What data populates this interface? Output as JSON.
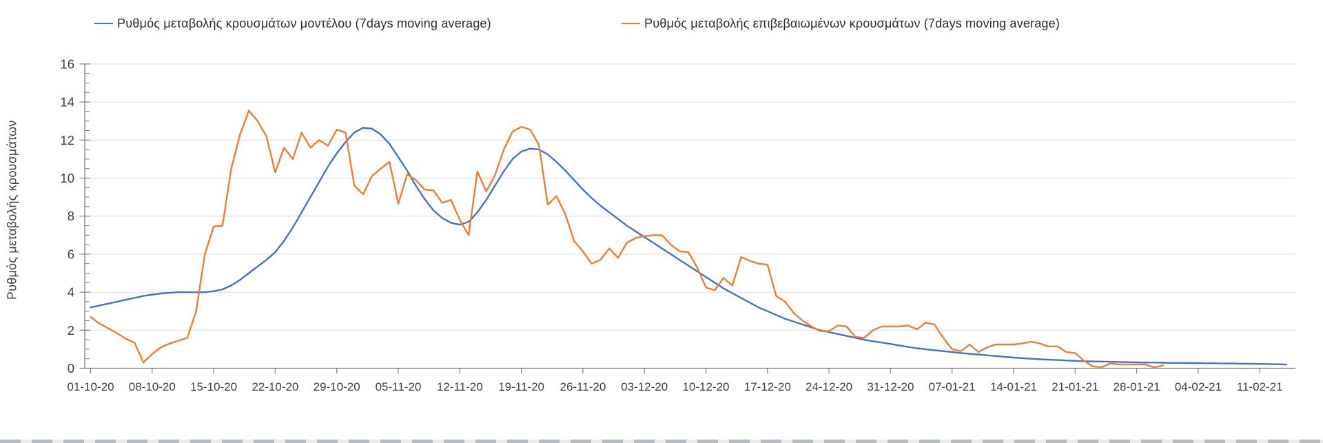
{
  "page": {
    "background": "#ffffff"
  },
  "chart_data": {
    "type": "line",
    "title": "",
    "xlabel": "",
    "ylabel": "Ρυθμός μεταβολής κρουσμάτων",
    "ylim": [
      0,
      16
    ],
    "y_tick_labels": [
      "0",
      "2",
      "4",
      "6",
      "8",
      "10",
      "12",
      "14",
      "16"
    ],
    "y_tick_step": 2,
    "y_minor_tick_step": 0.5,
    "grid": "horizontal-major",
    "legend_position": "top",
    "x_start_date": "01-10-20",
    "x_frequency": "daily",
    "x_tick_every_days": 7,
    "x_tick_labels": [
      "01-10-20",
      "08-10-20",
      "15-10-20",
      "22-10-20",
      "29-10-20",
      "05-11-20",
      "12-11-20",
      "19-11-20",
      "26-11-20",
      "03-12-20",
      "10-12-20",
      "17-12-20",
      "24-12-20",
      "31-12-20",
      "07-01-21",
      "14-01-21",
      "21-01-21",
      "28-01-21",
      "04-02-21",
      "11-02-21"
    ],
    "colors": {
      "axis": "#7f7f7f",
      "grid": "#dcdcdc",
      "label": "#3f3f3f"
    },
    "series": [
      {
        "name": "Ρυθμός μεταβολής κρουσμάτων μοντέλου (7days moving average)",
        "color": "#4472c4",
        "values": [
          3.2,
          3.3,
          3.4,
          3.5,
          3.6,
          3.7,
          3.8,
          3.87,
          3.93,
          3.97,
          4,
          4,
          4,
          4,
          4.05,
          4.15,
          4.35,
          4.65,
          5,
          5.35,
          5.7,
          6.1,
          6.7,
          7.4,
          8.2,
          9,
          9.8,
          10.6,
          11.3,
          11.9,
          12.4,
          12.65,
          12.6,
          12.3,
          11.8,
          11.1,
          10.4,
          9.6,
          8.9,
          8.3,
          7.9,
          7.65,
          7.55,
          7.7,
          8.2,
          8.85,
          9.6,
          10.35,
          11,
          11.4,
          11.55,
          11.5,
          11.25,
          10.85,
          10.4,
          9.9,
          9.4,
          8.95,
          8.55,
          8.2,
          7.85,
          7.5,
          7.2,
          6.9,
          6.6,
          6.3,
          6,
          5.7,
          5.4,
          5.1,
          4.8,
          4.5,
          4.2,
          3.95,
          3.7,
          3.45,
          3.2,
          3,
          2.8,
          2.6,
          2.45,
          2.3,
          2.15,
          2,
          1.9,
          1.8,
          1.7,
          1.6,
          1.5,
          1.42,
          1.35,
          1.28,
          1.2,
          1.12,
          1.05,
          1,
          0.95,
          0.9,
          0.85,
          0.8,
          0.76,
          0.72,
          0.68,
          0.64,
          0.6,
          0.56,
          0.53,
          0.5,
          0.47,
          0.45,
          0.43,
          0.41,
          0.39,
          0.37,
          0.36,
          0.35,
          0.34,
          0.33,
          0.32,
          0.31,
          0.3,
          0.3,
          0.29,
          0.28,
          0.28,
          0.27,
          0.27,
          0.26,
          0.26,
          0.25,
          0.25,
          0.24,
          0.24,
          0.23,
          0.22,
          0.21,
          0.2
        ]
      },
      {
        "name": "Ρυθμός μεταβολής επιβεβαιωμένων κρουσμάτων (7days moving average)",
        "color": "#ed7d31",
        "values": [
          2.7,
          2.35,
          2.1,
          1.85,
          1.55,
          1.35,
          0.3,
          0.75,
          1.1,
          1.3,
          1.45,
          1.6,
          3,
          6,
          7.45,
          7.5,
          10.5,
          12.3,
          13.55,
          13,
          12.2,
          10.3,
          11.6,
          11,
          12.4,
          11.6,
          12,
          11.7,
          12.55,
          12.4,
          9.6,
          9.15,
          10.1,
          10.5,
          10.85,
          8.65,
          10.2,
          9.9,
          9.4,
          9.35,
          8.7,
          8.85,
          7.8,
          7,
          10.35,
          9.3,
          10.15,
          11.5,
          12.45,
          12.7,
          12.55,
          11.75,
          8.6,
          9.05,
          8.1,
          6.7,
          6.15,
          5.5,
          5.7,
          6.3,
          5.8,
          6.6,
          6.85,
          6.95,
          7,
          7,
          6.5,
          6.15,
          6.1,
          5.3,
          4.25,
          4.1,
          4.75,
          4.35,
          5.85,
          5.65,
          5.5,
          5.45,
          3.8,
          3.5,
          2.9,
          2.5,
          2.2,
          1.95,
          1.95,
          2.25,
          2.2,
          1.65,
          1.6,
          2,
          2.2,
          2.2,
          2.2,
          2.25,
          2.05,
          2.4,
          2.3,
          1.6,
          1,
          0.9,
          1.25,
          0.85,
          1.1,
          1.25,
          1.25,
          1.25,
          1.3,
          1.4,
          1.3,
          1.15,
          1.15,
          0.85,
          0.8,
          0.4,
          0.1,
          0.05,
          0.25,
          0.2,
          0.2,
          0.2,
          0.2,
          0.05,
          0.15
        ]
      }
    ]
  }
}
